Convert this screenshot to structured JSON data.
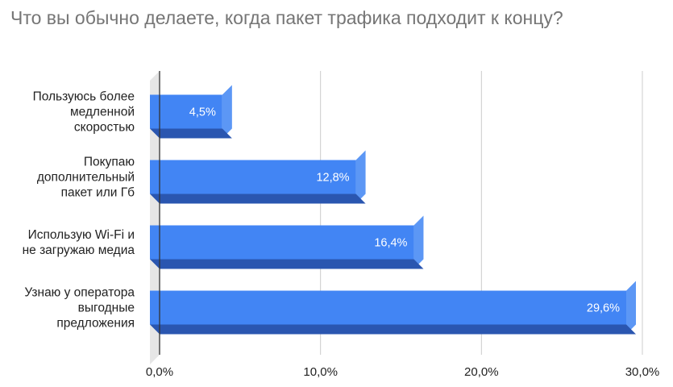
{
  "chart_data": {
    "type": "bar",
    "orientation": "horizontal",
    "style": "3d",
    "title": "Что вы обычно делаете, когда пакет трафика подходит к концу?",
    "categories": [
      [
        "Пользуюсь более",
        "медленной",
        "скоростью"
      ],
      [
        "Покупаю",
        "дополнительный",
        "пакет или Гб"
      ],
      [
        "Использую Wi-Fi и",
        "не загружаю медиа"
      ],
      [
        "Узнаю у оператора",
        "выгодные",
        "предложения"
      ]
    ],
    "values": [
      4.5,
      12.8,
      16.4,
      29.6
    ],
    "data_labels": [
      "4,5%",
      "12,8%",
      "16,4%",
      "29,6%"
    ],
    "xlim": [
      0,
      30
    ],
    "ticks": [
      0,
      10,
      20,
      30
    ],
    "tick_labels": [
      "0,0%",
      "10,0%",
      "20,0%",
      "30,0%"
    ],
    "grid": true,
    "legend": "none",
    "colors": {
      "bar_front": "#4285f4",
      "bar_side": "#5c97f5",
      "bar_bottom": "#2a56b0",
      "grid": "#cccccc",
      "axis": "#333333",
      "wall": "#e6e6e6",
      "title": "#757575"
    }
  }
}
